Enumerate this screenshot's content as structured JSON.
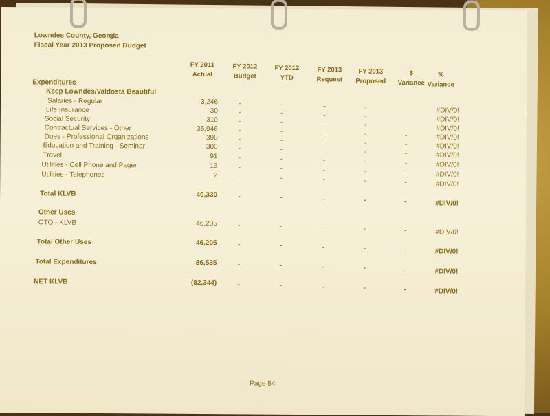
{
  "header": {
    "county": "Lowndes County, Georgia",
    "title": "Fiscal Year 2013 Proposed Budget"
  },
  "columns": [
    {
      "line1": "FY 2011",
      "line2": "Actual"
    },
    {
      "line1": "FY 2012",
      "line2": "Budget"
    },
    {
      "line1": "FY 2012",
      "line2": "YTD"
    },
    {
      "line1": "FY 2013",
      "line2": "Request"
    },
    {
      "line1": "FY 2013",
      "line2": "Proposed"
    },
    {
      "line1": "$",
      "line2": "Variance"
    },
    {
      "line1": "%",
      "line2": "Variance"
    }
  ],
  "section": "Expenditures",
  "department": "Keep Lowndes/Valdosta Beautiful",
  "rows": [
    {
      "label": "Salaries - Regular",
      "values": [
        "3,246",
        "-",
        "-",
        "-",
        "-",
        "-",
        "#DIV/0!"
      ],
      "bold": false
    },
    {
      "label": "Life Insurance",
      "values": [
        "30",
        "-",
        "-",
        "-",
        "-",
        "-",
        "#DIV/0!"
      ],
      "bold": false
    },
    {
      "label": "Social Security",
      "values": [
        "310",
        "-",
        "-",
        "-",
        "-",
        "-",
        "#DIV/0!"
      ],
      "bold": false
    },
    {
      "label": "Contractual Services - Other",
      "values": [
        "35,946",
        "-",
        "-",
        "-",
        "-",
        "-",
        "#DIV/0!"
      ],
      "bold": false
    },
    {
      "label": "Dues - Professional Organizations",
      "values": [
        "390",
        "-",
        "-",
        "-",
        "-",
        "-",
        "#DIV/0!"
      ],
      "bold": false
    },
    {
      "label": "Education and Training - Seminar",
      "values": [
        "300",
        "-",
        "-",
        "-",
        "-",
        "-",
        "#DIV/0!"
      ],
      "bold": false
    },
    {
      "label": "Travel",
      "values": [
        "91",
        "-",
        "-",
        "-",
        "-",
        "-",
        "#DIV/0!"
      ],
      "bold": false
    },
    {
      "label": "Utilities - Cell Phone and Pager",
      "values": [
        "13",
        "-",
        "-",
        "-",
        "-",
        "-",
        "#DIV/0!"
      ],
      "bold": false
    },
    {
      "label": "Utilities - Telephones",
      "values": [
        "2",
        "-",
        "-",
        "-",
        "-",
        "-",
        "#DIV/0!"
      ],
      "bold": false
    },
    {
      "label": "Total KLVB",
      "values": [
        "40,330",
        "-",
        "-",
        "-",
        "-",
        "-",
        "#DIV/0!"
      ],
      "bold": true
    },
    {
      "label": "Other Uses",
      "values": [],
      "bold": true
    },
    {
      "label": "OTO - KLVB",
      "values": [
        "46,205",
        "-",
        "-",
        "-",
        "-",
        "-",
        "#DIV/0!"
      ],
      "bold": false
    },
    {
      "label": "Total Other Uses",
      "values": [
        "46,205",
        "-",
        "-",
        "-",
        "-",
        "-",
        "#DIV/0!"
      ],
      "bold": true
    },
    {
      "label": "Total Expenditures",
      "values": [
        "86,535",
        "-",
        "-",
        "-",
        "-",
        "-",
        "#DIV/0!"
      ],
      "bold": true
    },
    {
      "label": "NET KLVB",
      "values": [
        "(82,344)",
        "-",
        "-",
        "-",
        "-",
        "-",
        "#DIV/0!"
      ],
      "bold": true
    }
  ],
  "footer": {
    "page": "Page 54"
  }
}
